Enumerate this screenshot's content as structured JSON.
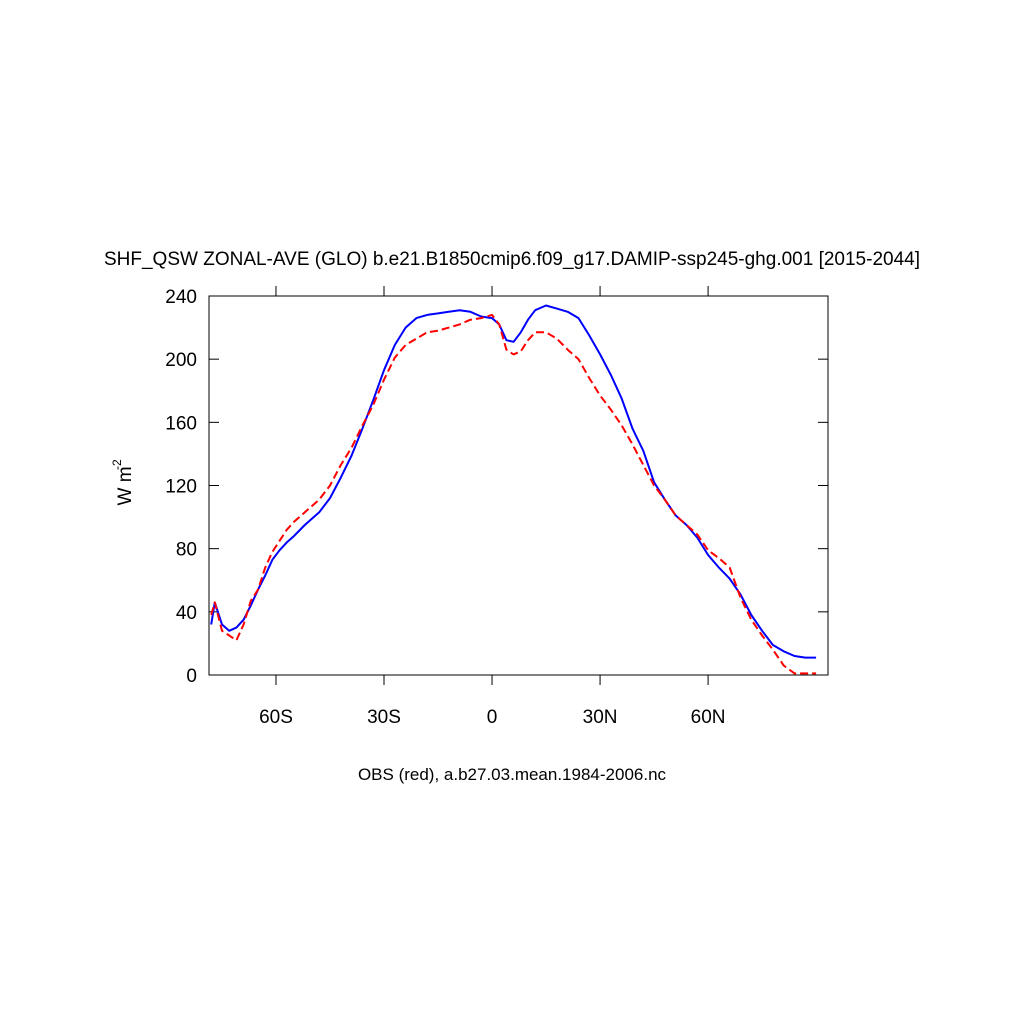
{
  "chart_data": {
    "type": "line",
    "title": "SHF_QSW ZONAL-AVE (GLO) b.e21.B1850cmip6.f09_g17.DAMIP-ssp245-ghg.001 [2015-2044]",
    "subtitle": "OBS (red), a.b27.03.mean.1984-2006.nc",
    "ylabel": {
      "base": "W m",
      "superscript": "-2"
    },
    "x": [
      -78,
      -77,
      -75,
      -73,
      -71,
      -69,
      -67,
      -65,
      -63,
      -61,
      -59,
      -57,
      -55,
      -52,
      -48,
      -45,
      -42,
      -39,
      -36,
      -33,
      -30,
      -27,
      -24,
      -21,
      -18,
      -15,
      -12,
      -9,
      -6,
      -3,
      0,
      2,
      4,
      6,
      8,
      10,
      12,
      15,
      18,
      21,
      24,
      27,
      30,
      33,
      36,
      39,
      42,
      45,
      48,
      51,
      54,
      57,
      60,
      63,
      66,
      69,
      72,
      75,
      78,
      81,
      84,
      87,
      90
    ],
    "series": [
      {
        "color": "#0000ff",
        "dashed": false,
        "values": [
          32,
          46,
          32,
          28,
          30,
          35,
          44,
          54,
          63,
          73,
          79,
          84,
          88,
          95,
          103,
          112,
          125,
          139,
          156,
          174,
          193,
          209,
          220,
          226,
          228,
          229,
          230,
          231,
          230,
          227,
          226,
          222,
          212,
          211,
          217,
          225,
          231,
          234,
          232,
          230,
          226,
          215,
          203,
          190,
          175,
          156,
          142,
          122,
          111,
          101,
          95,
          87,
          76,
          68,
          61,
          51,
          38,
          28,
          19,
          15,
          12,
          11,
          11
        ]
      },
      {
        "color": "#ff0000",
        "dashed": true,
        "values": [
          38,
          46,
          28,
          25,
          22,
          32,
          47,
          54,
          68,
          78,
          85,
          92,
          97,
          103,
          111,
          120,
          133,
          144,
          158,
          171,
          187,
          201,
          209,
          213,
          217,
          218,
          220,
          222,
          225,
          226,
          228,
          222,
          206,
          203,
          205,
          212,
          217,
          217,
          213,
          206,
          200,
          188,
          177,
          168,
          158,
          146,
          133,
          120,
          111,
          101,
          95,
          89,
          79,
          74,
          68,
          49,
          35,
          25,
          16,
          6,
          1,
          1,
          1
        ]
      }
    ],
    "xlim": [
      -78.6,
      93.3
    ],
    "xticks": [
      {
        "value": -60,
        "label": "60S"
      },
      {
        "value": -30,
        "label": "30S"
      },
      0,
      {
        "value": 30,
        "label": "30N"
      },
      {
        "value": 60,
        "label": "60N"
      }
    ],
    "ylim": [
      0,
      240
    ],
    "yticks": [
      0,
      40,
      80,
      120,
      160,
      200,
      240
    ]
  }
}
